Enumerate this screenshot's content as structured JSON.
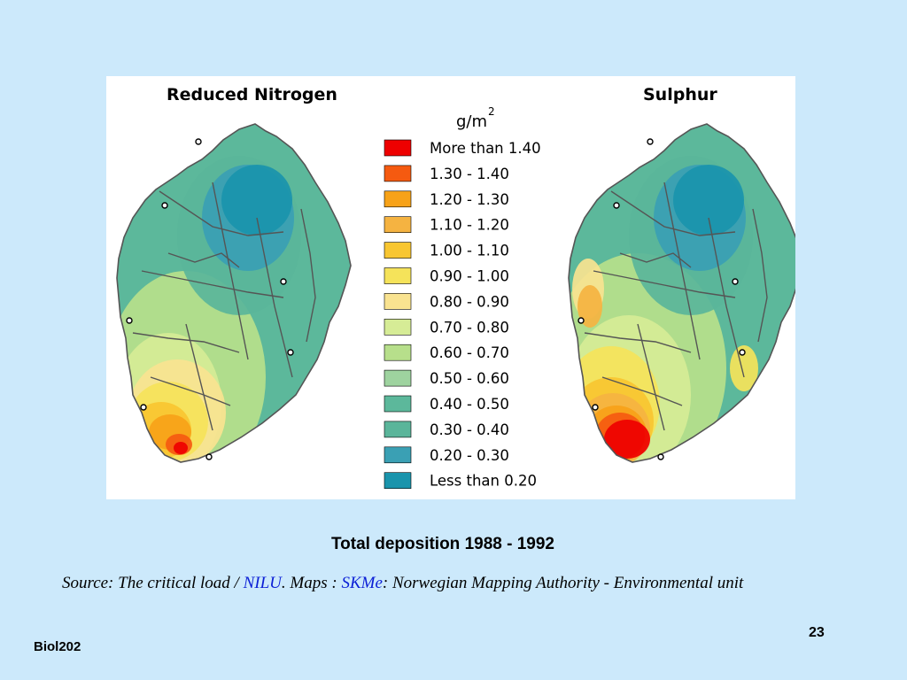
{
  "figure": {
    "left_map_title": "Reduced Nitrogen",
    "right_map_title": "Sulphur",
    "unit_base": "g/m",
    "unit_exp": "2",
    "legend": [
      {
        "label": "More than 1.40",
        "color": "#ee0000"
      },
      {
        "label": "1.30   -   1.40",
        "color": "#f55a10"
      },
      {
        "label": "1.20   -   1.30",
        "color": "#f7a218"
      },
      {
        "label": "1.10   -   1.20",
        "color": "#f5b341"
      },
      {
        "label": "1.00   -   1.10",
        "color": "#f8c631"
      },
      {
        "label": "0.90   -   1.00",
        "color": "#f5e35a"
      },
      {
        "label": "0.80   -   0.90",
        "color": "#f9e390"
      },
      {
        "label": "0.70   -   0.80",
        "color": "#d6ec96"
      },
      {
        "label": "0.60   -   0.70",
        "color": "#b7df8b"
      },
      {
        "label": "0.50   -   0.60",
        "color": "#9ed39f"
      },
      {
        "label": "0.40   -   0.50",
        "color": "#5cb89b"
      },
      {
        "label": "0.30   -   0.40",
        "color": "#5ab59a"
      },
      {
        "label": "0.20   -   0.30",
        "color": "#3aa0b4"
      },
      {
        "label": "Less than 0.20",
        "color": "#1a94ac"
      }
    ]
  },
  "caption": "Total deposition 1988 - 1992",
  "source": {
    "prefix": "Source: The critical load / ",
    "org": "NILU",
    "mid": ".  Maps : ",
    "maps_org": "SKMe",
    "suffix": ": Norwegian Mapping Authority - Environmental unit"
  },
  "footer": {
    "course": "Biol202",
    "page": "23"
  },
  "colors": {
    "background": "#cce9fb",
    "figure_bg": "#ffffff",
    "link": "#0b1fd6",
    "rivers": "#555555"
  }
}
